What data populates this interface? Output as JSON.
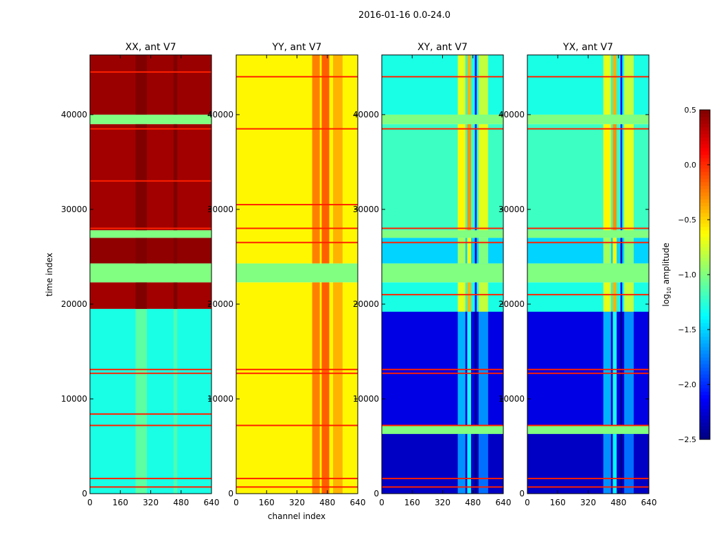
{
  "chart_data": {
    "type": "heatmap",
    "suptitle": "2016-01-16 0.0-24.0",
    "xlabel": "channel index",
    "ylabel": "time index",
    "xlim": [
      0,
      640
    ],
    "ylim": [
      0,
      46300
    ],
    "xticks": [
      "0",
      "160",
      "320",
      "480",
      "640"
    ],
    "yticks": [
      "0",
      "10000",
      "20000",
      "30000",
      "40000"
    ],
    "colorbar": {
      "label": "log10 amplitude",
      "label_main": "log",
      "label_sub": "10",
      "label_rest": " amplitude",
      "range": [
        -2.5,
        0.5
      ],
      "ticks": [
        "0.5",
        "0.0",
        "−0.5",
        "−1.0",
        "−1.5",
        "−2.0",
        "−2.5"
      ],
      "tick_values": [
        0.5,
        0.0,
        -0.5,
        -1.0,
        -1.5,
        -2.0,
        -2.5
      ],
      "colormap": "jet"
    },
    "panels": [
      {
        "title": "XX, ant V7",
        "segments": [
          [
            0,
            19500,
            -1.3,
            false
          ],
          [
            19500,
            22300,
            0.4,
            false
          ],
          [
            22300,
            24300,
            -1.0,
            true
          ],
          [
            24300,
            27000,
            0.45,
            false
          ],
          [
            27000,
            27800,
            -1.0,
            true
          ],
          [
            27800,
            39000,
            0.4,
            false
          ],
          [
            39000,
            40000,
            -1.0,
            true
          ],
          [
            40000,
            46300,
            0.42,
            false
          ]
        ],
        "channel_features": [
          [
            240,
            300,
            0.2
          ],
          [
            440,
            460,
            0.15
          ]
        ],
        "lines": [
          700,
          1600,
          7200,
          8400,
          12700,
          13100,
          28000,
          33000,
          38500,
          44500
        ]
      },
      {
        "title": "YY, ant V7",
        "segments": [
          [
            0,
            22300,
            -0.6,
            false
          ],
          [
            22300,
            24300,
            -1.0,
            true
          ],
          [
            24300,
            46300,
            -0.6,
            false
          ]
        ],
        "channel_features": [
          [
            400,
            440,
            0.35
          ],
          [
            450,
            490,
            0.45
          ],
          [
            510,
            560,
            0.2
          ]
        ],
        "lines": [
          700,
          1600,
          7200,
          12700,
          13100,
          26500,
          28000,
          30500,
          38500,
          44000
        ]
      },
      {
        "title": "XY, ant V7",
        "segments": [
          [
            0,
            6300,
            -2.3,
            false
          ],
          [
            6300,
            7200,
            -1.0,
            true
          ],
          [
            7200,
            19200,
            -2.2,
            false
          ],
          [
            19200,
            22300,
            -1.3,
            false
          ],
          [
            22300,
            24300,
            -1.0,
            true
          ],
          [
            24300,
            27000,
            -1.5,
            false
          ],
          [
            27000,
            27800,
            -1.0,
            true
          ],
          [
            27800,
            39000,
            -1.2,
            false
          ],
          [
            39000,
            40000,
            -1.0,
            true
          ],
          [
            40000,
            46300,
            -1.3,
            false
          ]
        ],
        "channel_features": [
          [
            400,
            440,
            0.6
          ],
          [
            450,
            470,
            0.9
          ],
          [
            490,
            500,
            -0.8
          ],
          [
            510,
            560,
            0.5
          ]
        ],
        "lines": [
          700,
          1600,
          7200,
          12700,
          13100,
          21000,
          26500,
          28000,
          38500,
          44000
        ]
      },
      {
        "title": "YX, ant V7",
        "segments": [
          [
            0,
            6300,
            -2.3,
            false
          ],
          [
            6300,
            7200,
            -1.0,
            true
          ],
          [
            7200,
            19200,
            -2.2,
            false
          ],
          [
            19200,
            22300,
            -1.3,
            false
          ],
          [
            22300,
            24300,
            -1.0,
            true
          ],
          [
            24300,
            27000,
            -1.5,
            false
          ],
          [
            27000,
            27800,
            -1.0,
            true
          ],
          [
            27800,
            39000,
            -1.2,
            false
          ],
          [
            39000,
            40000,
            -1.0,
            true
          ],
          [
            40000,
            46300,
            -1.3,
            false
          ]
        ],
        "channel_features": [
          [
            400,
            440,
            0.6
          ],
          [
            450,
            470,
            0.9
          ],
          [
            490,
            500,
            -0.8
          ],
          [
            510,
            560,
            0.5
          ]
        ],
        "lines": [
          700,
          1600,
          7200,
          12700,
          13100,
          21000,
          26500,
          28000,
          38500,
          44000
        ]
      }
    ]
  }
}
